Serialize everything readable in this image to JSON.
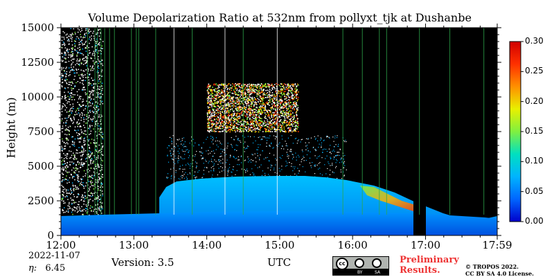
{
  "chart_data": {
    "type": "heatmap",
    "title": "Volume Depolarization Ratio at 532nm from pollyxt_tjk at Dushanbe",
    "ylabel": "Height (m)",
    "xlabel": "UTC",
    "x_ticks": [
      "12:00",
      "13:00",
      "14:00",
      "15:00",
      "16:00",
      "17:00",
      "17:59"
    ],
    "y_ticks": [
      "0",
      "2500",
      "5000",
      "7500",
      "10000",
      "12500",
      "15000"
    ],
    "ylim": [
      0,
      15000
    ],
    "xlim": [
      "12:00",
      "17:59"
    ],
    "colorbar": {
      "range": [
        0.0,
        0.3
      ],
      "ticks": [
        "0.00",
        "0.05",
        "0.10",
        "0.15",
        "0.20",
        "0.25",
        "0.30"
      ],
      "colormap": [
        "#0000cc",
        "#0066ff",
        "#00b4ff",
        "#00e0c0",
        "#80f040",
        "#e8f000",
        "#ff9000",
        "#ff3000",
        "#d00000"
      ]
    },
    "background_color": "#000000",
    "features": [
      {
        "label": "boundary layer",
        "time_start": "12:00",
        "time_end": "17:59",
        "height_max": 1500,
        "depol": 0.03
      },
      {
        "label": "aerosol layer",
        "time_start": "13:20",
        "time_end": "17:10",
        "height_max": 4300,
        "depol": 0.05
      },
      {
        "label": "dust layer",
        "time_start": "16:10",
        "time_end": "17:00",
        "height_min": 1500,
        "height_max": 3500,
        "depol": 0.2
      },
      {
        "label": "cirrus cloud",
        "time_start": "14:00",
        "time_end": "15:15",
        "height_min": 7500,
        "height_max": 11000,
        "depol": 0.25
      }
    ]
  },
  "footer": {
    "date": "2022-11-07",
    "eta_label": "η:",
    "eta_value": "6.45",
    "version": "Version: 3.5",
    "prelim_line1": "Preliminary",
    "prelim_line2": "Results.",
    "license_line1": "© TROPOS 2022.",
    "license_line2": "CC BY SA 4.0 License."
  },
  "cc_badge": {
    "cc": "cc",
    "by": "BY",
    "sa": "SA"
  }
}
